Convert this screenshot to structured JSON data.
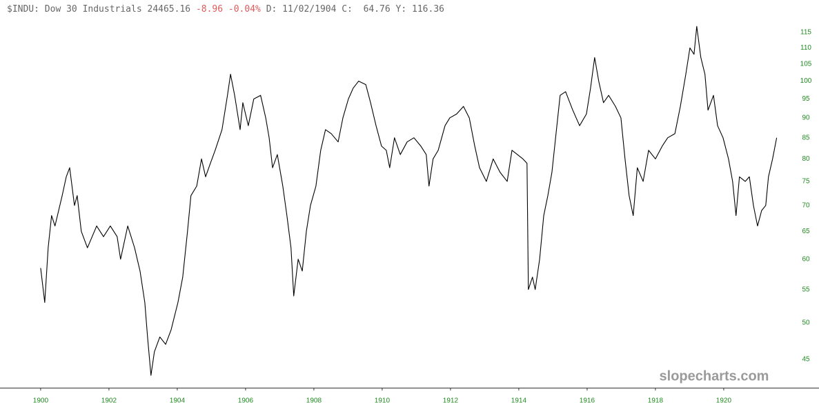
{
  "chart_data": {
    "type": "line",
    "title": "$INDU: Dow 30 Industrials 24465.16",
    "change": "-8.96 -0.04%",
    "info": "D: 11/02/1904 C:  64.76 Y: 116.36",
    "watermark": "slopecharts.com",
    "color": "#000000",
    "change_color": "#e05a5a",
    "tick_color": "#1f8a1f",
    "log_scale": true,
    "grid": false,
    "xlim": [
      1898.81,
      1921.84
    ],
    "xticks": [
      1900,
      1902,
      1904,
      1906,
      1908,
      1910,
      1912,
      1914,
      1916,
      1918,
      1920
    ],
    "ylim": [
      41.5,
      121.3
    ],
    "yticks": [
      45,
      50,
      55,
      60,
      65,
      70,
      75,
      80,
      85,
      90,
      95,
      100,
      105,
      110,
      115
    ],
    "x": [
      1900.0,
      1900.12,
      1900.22,
      1900.32,
      1900.42,
      1900.63,
      1900.75,
      1900.85,
      1900.99,
      1901.07,
      1901.19,
      1901.37,
      1901.64,
      1901.84,
      1902.04,
      1902.24,
      1902.34,
      1902.55,
      1902.75,
      1902.91,
      1903.05,
      1903.13,
      1903.23,
      1903.33,
      1903.49,
      1903.66,
      1903.82,
      1904.02,
      1904.16,
      1904.3,
      1904.4,
      1904.57,
      1904.71,
      1904.83,
      1904.97,
      1905.11,
      1905.31,
      1905.47,
      1905.56,
      1905.68,
      1905.84,
      1905.92,
      1906.08,
      1906.24,
      1906.44,
      1906.59,
      1906.69,
      1906.79,
      1906.93,
      1907.09,
      1907.21,
      1907.33,
      1907.41,
      1907.54,
      1907.66,
      1907.78,
      1907.9,
      1908.06,
      1908.2,
      1908.34,
      1908.51,
      1908.71,
      1908.85,
      1909.01,
      1909.15,
      1909.31,
      1909.52,
      1909.66,
      1909.82,
      1909.98,
      1910.12,
      1910.22,
      1910.36,
      1910.53,
      1910.73,
      1910.93,
      1911.13,
      1911.29,
      1911.37,
      1911.49,
      1911.64,
      1911.84,
      1911.98,
      1912.18,
      1912.38,
      1912.55,
      1912.71,
      1912.85,
      1913.05,
      1913.25,
      1913.45,
      1913.66,
      1913.8,
      1913.96,
      1914.12,
      1914.24,
      1914.28,
      1914.4,
      1914.48,
      1914.61,
      1914.73,
      1914.85,
      1914.97,
      1915.09,
      1915.21,
      1915.37,
      1915.58,
      1915.78,
      1915.98,
      1916.1,
      1916.22,
      1916.34,
      1916.48,
      1916.63,
      1916.83,
      1916.99,
      1917.11,
      1917.23,
      1917.35,
      1917.47,
      1917.64,
      1917.8,
      1918.0,
      1918.2,
      1918.36,
      1918.57,
      1918.73,
      1918.89,
      1919.01,
      1919.13,
      1919.21,
      1919.33,
      1919.45,
      1919.54,
      1919.7,
      1919.82,
      1919.98,
      1920.14,
      1920.26,
      1920.36,
      1920.46,
      1920.63,
      1920.75,
      1920.87,
      1920.99,
      1921.11,
      1921.23,
      1921.31,
      1921.43,
      1921.55
    ],
    "values": [
      58.5,
      53,
      62,
      68,
      66,
      72,
      76,
      78,
      70,
      72,
      65,
      62,
      66,
      64,
      66,
      64,
      60,
      66,
      62,
      58,
      53,
      48,
      43,
      46,
      48,
      47,
      49,
      53,
      57,
      65,
      72,
      74,
      80,
      76,
      79,
      82,
      87,
      96,
      102,
      96,
      87,
      94,
      88,
      95,
      96,
      90,
      85,
      78,
      81,
      74,
      68,
      62,
      54,
      60,
      58,
      65,
      70,
      74,
      82,
      87,
      86,
      84,
      90,
      95,
      98,
      100,
      99,
      94,
      88,
      83,
      82,
      78,
      85,
      81,
      84,
      85,
      83,
      81,
      74,
      80,
      82,
      88,
      90,
      91,
      93,
      90,
      83,
      78,
      75,
      80,
      77,
      75,
      82,
      81,
      80,
      79,
      55,
      57,
      55,
      60,
      68,
      72,
      77,
      86,
      96,
      97,
      92,
      88,
      91,
      98,
      107,
      100,
      94,
      96,
      93,
      90,
      80,
      72,
      68,
      78,
      75,
      82,
      80,
      83,
      85,
      86,
      93,
      102,
      110,
      108,
      117,
      107,
      102,
      92,
      96,
      88,
      85,
      80,
      75,
      68,
      76,
      75,
      76,
      70,
      66,
      69,
      70,
      76,
      80,
      85
    ]
  }
}
